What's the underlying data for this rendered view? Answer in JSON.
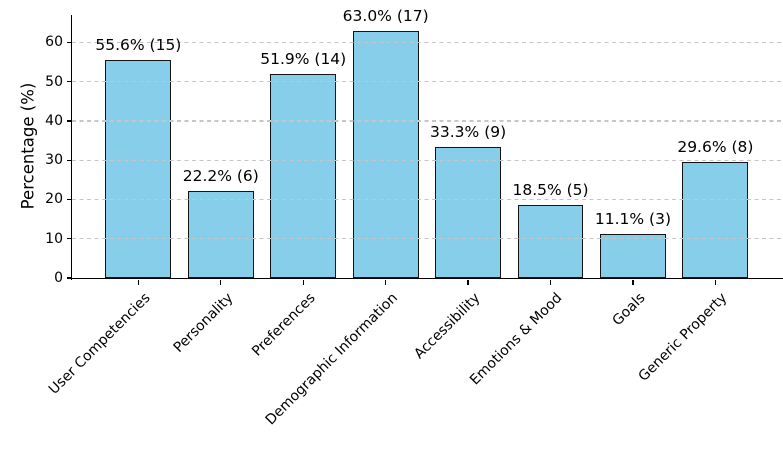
{
  "chart_data": {
    "type": "bar",
    "title": "",
    "xlabel": "",
    "ylabel": "Percentage (%)",
    "categories": [
      "User Competencies",
      "Personality",
      "Preferences",
      "Demographic Information",
      "Accessibility",
      "Emotions & Mood",
      "Goals",
      "Generic Property"
    ],
    "values": [
      55.6,
      22.2,
      51.9,
      63.0,
      33.3,
      18.5,
      11.1,
      29.6
    ],
    "counts": [
      15,
      6,
      14,
      17,
      9,
      5,
      3,
      8
    ],
    "bar_labels": [
      "55.6% (15)",
      "22.2% (6)",
      "51.9% (14)",
      "63.0% (17)",
      "33.3% (9)",
      "18.5% (5)",
      "11.1% (3)",
      "29.6% (8)"
    ],
    "y_ticks": [
      0,
      10,
      20,
      30,
      40,
      50,
      60
    ],
    "ylim": [
      0,
      67
    ],
    "x_tick_rotation_deg": 45,
    "grid": "horizontal-dashed",
    "grid_above_bars": true,
    "legend_position": "none",
    "bar_color": "#87CEEB",
    "bar_edge_color": "#141414",
    "grid_color": "#c6c6c6",
    "text_color": "#000000"
  }
}
